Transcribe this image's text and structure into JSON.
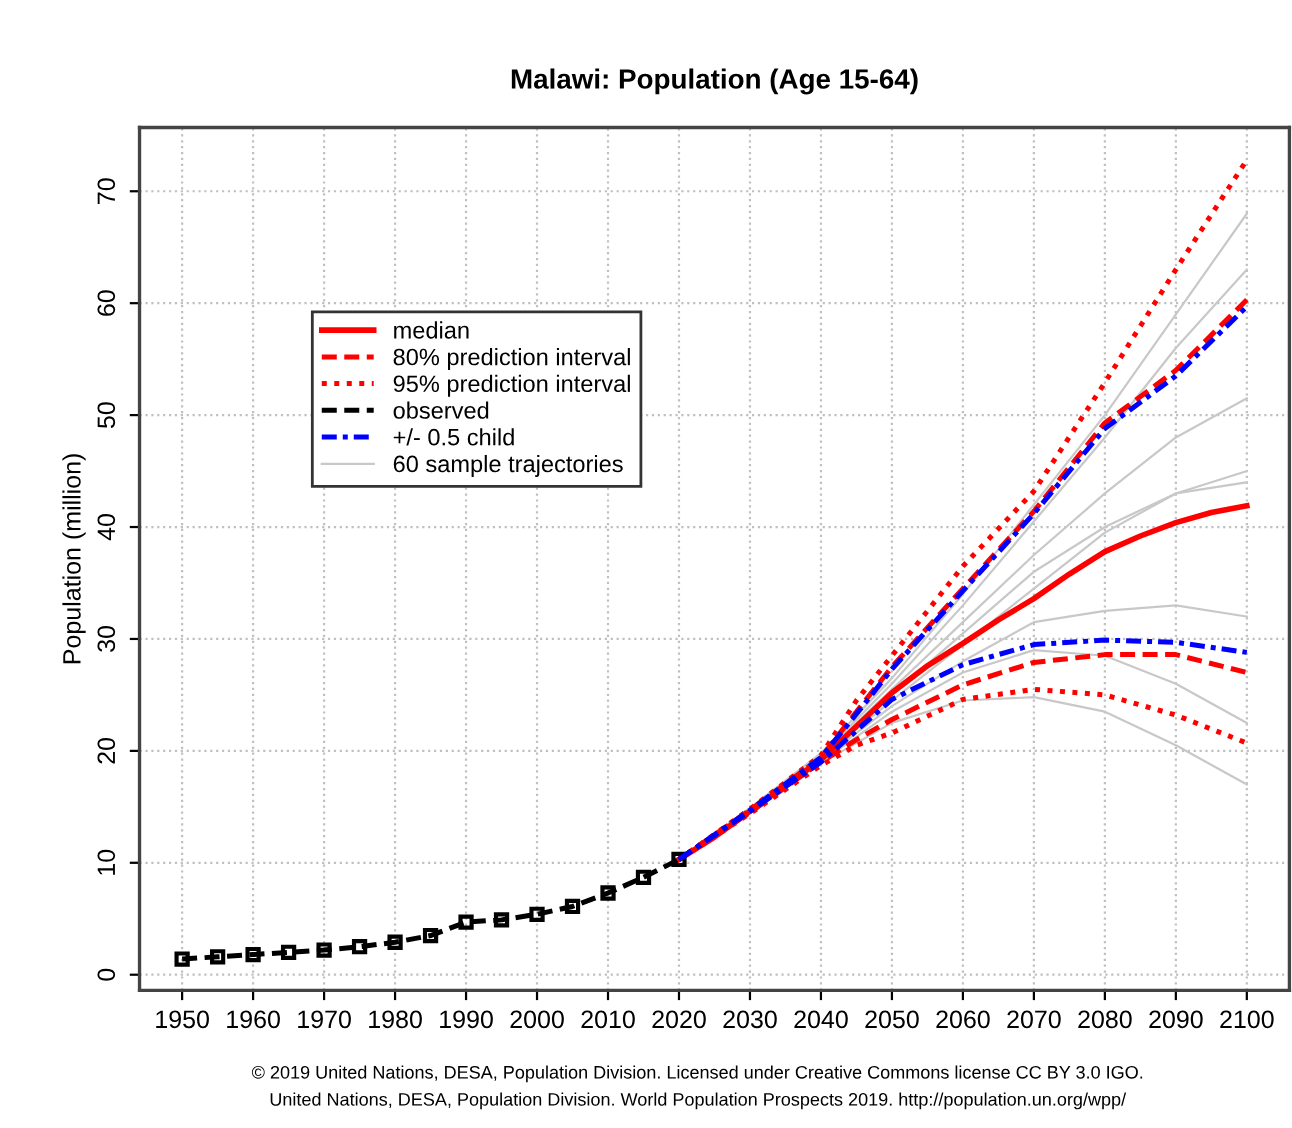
{
  "chart_data": {
    "type": "line",
    "title": "Malawi: Population (Age 15-64)",
    "ylabel": "Population (million)",
    "xlim": [
      1944,
      2106
    ],
    "ylim": [
      -1.4,
      75.7
    ],
    "xticks": [
      1950,
      1960,
      1970,
      1980,
      1990,
      2000,
      2010,
      2020,
      2030,
      2040,
      2050,
      2060,
      2070,
      2080,
      2090,
      2100
    ],
    "yticks": [
      0,
      10,
      20,
      30,
      40,
      50,
      60,
      70
    ],
    "grid": true,
    "legend": "top left",
    "series": [
      {
        "name": "60 sample trajectories",
        "color": "#c8c8c8",
        "line_style": "solid",
        "x": [
          2020,
          2030,
          2040,
          2050,
          2060,
          2070,
          2080,
          2090,
          2100
        ],
        "values": [
          10.3,
          14.7,
          19.3,
          24.5,
          29.5,
          34.5,
          39.5,
          43.0,
          45.0
        ]
      },
      {
        "color": "#c8c8c8",
        "line_style": "solid",
        "x": [
          2020,
          2030,
          2040,
          2050,
          2060,
          2070,
          2080,
          2090,
          2100
        ],
        "values": [
          10.3,
          14.8,
          19.6,
          26.0,
          33.0,
          40.5,
          48.0,
          56.0,
          63.0
        ]
      },
      {
        "color": "#c8c8c8",
        "line_style": "solid",
        "x": [
          2020,
          2030,
          2040,
          2050,
          2060,
          2070,
          2080,
          2090,
          2100
        ],
        "values": [
          10.3,
          14.6,
          18.9,
          22.5,
          24.5,
          24.8,
          23.5,
          20.5,
          17.0
        ]
      },
      {
        "color": "#c8c8c8",
        "line_style": "solid",
        "x": [
          2020,
          2030,
          2040,
          2050,
          2060,
          2070,
          2080,
          2090,
          2100
        ],
        "values": [
          10.3,
          14.7,
          19.2,
          24.0,
          28.0,
          31.5,
          32.5,
          33.0,
          32.0
        ]
      },
      {
        "color": "#c8c8c8",
        "line_style": "solid",
        "x": [
          2020,
          2030,
          2040,
          2050,
          2060,
          2070,
          2080,
          2090,
          2100
        ],
        "values": [
          10.3,
          14.8,
          19.5,
          25.5,
          31.5,
          37.5,
          43.0,
          48.0,
          51.5
        ]
      },
      {
        "color": "#c8c8c8",
        "line_style": "solid",
        "x": [
          2020,
          2030,
          2040,
          2050,
          2060,
          2070,
          2080,
          2090,
          2100
        ],
        "values": [
          10.3,
          14.6,
          19.0,
          23.5,
          27.0,
          29.0,
          28.5,
          26.0,
          22.5
        ]
      },
      {
        "color": "#c8c8c8",
        "line_style": "solid",
        "x": [
          2020,
          2030,
          2040,
          2050,
          2060,
          2070,
          2080,
          2090,
          2100
        ],
        "values": [
          10.3,
          14.7,
          19.4,
          25.0,
          30.5,
          36.0,
          40.0,
          43.0,
          44.0
        ]
      },
      {
        "color": "#c8c8c8",
        "line_style": "solid",
        "x": [
          2020,
          2030,
          2040,
          2050,
          2060,
          2070,
          2080,
          2090,
          2100
        ],
        "values": [
          10.3,
          14.9,
          19.8,
          26.5,
          34.0,
          42.0,
          50.0,
          59.0,
          68.0
        ]
      },
      {
        "name": "median",
        "color": "#ff0000",
        "line_style": "solid",
        "x": [
          2020,
          2025,
          2030,
          2035,
          2040,
          2045,
          2050,
          2055,
          2060,
          2065,
          2070,
          2075,
          2080,
          2085,
          2090,
          2095,
          2100
        ],
        "values": [
          10.3,
          12.3,
          14.6,
          16.9,
          19.2,
          22.2,
          25.2,
          27.6,
          29.6,
          31.7,
          33.6,
          35.8,
          37.8,
          39.2,
          40.4,
          41.3,
          41.9
        ]
      },
      {
        "name": "80% prediction interval",
        "color": "#ff0000",
        "line_style": "dashed",
        "x": [
          2020,
          2030,
          2040,
          2045,
          2050,
          2060,
          2070,
          2080,
          2090,
          2100
        ],
        "values": [
          10.3,
          14.7,
          19.4,
          23.5,
          27.5,
          34.5,
          41.4,
          49.3,
          54.0,
          60.3
        ]
      },
      {
        "color": "#ff0000",
        "line_style": "dashed",
        "x": [
          2020,
          2030,
          2040,
          2045,
          2050,
          2060,
          2070,
          2080,
          2090,
          2100
        ],
        "values": [
          10.3,
          14.5,
          19.0,
          21.0,
          22.8,
          25.9,
          27.9,
          28.6,
          28.6,
          27.0
        ]
      },
      {
        "name": "95% prediction interval",
        "color": "#ff0000",
        "line_style": "dotted",
        "x": [
          2020,
          2030,
          2040,
          2045,
          2050,
          2060,
          2070,
          2080,
          2090,
          2100
        ],
        "values": [
          10.3,
          14.8,
          19.6,
          24.5,
          28.5,
          36.5,
          43.2,
          52.9,
          63.0,
          72.8
        ]
      },
      {
        "color": "#ff0000",
        "line_style": "dotted",
        "x": [
          2020,
          2030,
          2040,
          2045,
          2050,
          2060,
          2070,
          2080,
          2090,
          2100
        ],
        "values": [
          10.3,
          14.4,
          18.7,
          20.5,
          21.6,
          24.6,
          25.5,
          25.0,
          23.2,
          20.7
        ]
      },
      {
        "name": "observed",
        "color": "#000000",
        "line_style": "dashed",
        "marker": "square",
        "x": [
          1950,
          1955,
          1960,
          1965,
          1970,
          1975,
          1980,
          1985,
          1990,
          1995,
          2000,
          2005,
          2010,
          2015,
          2020
        ],
        "values": [
          1.4,
          1.6,
          1.8,
          2.0,
          2.2,
          2.5,
          2.9,
          3.5,
          4.7,
          4.9,
          5.4,
          6.1,
          7.3,
          8.7,
          10.3
        ]
      },
      {
        "name": "+/- 0.5 child",
        "color": "#0000ff",
        "line_style": "dashdot",
        "x": [
          2020,
          2030,
          2040,
          2045,
          2050,
          2060,
          2070,
          2080,
          2090,
          2100
        ],
        "values": [
          10.3,
          14.7,
          19.4,
          23.3,
          27.3,
          34.3,
          41.2,
          48.8,
          53.5,
          59.7
        ]
      },
      {
        "color": "#0000ff",
        "line_style": "dashdot",
        "x": [
          2020,
          2030,
          2040,
          2045,
          2050,
          2060,
          2070,
          2080,
          2090,
          2100
        ],
        "values": [
          10.3,
          14.6,
          19.0,
          21.8,
          24.6,
          27.7,
          29.5,
          29.9,
          29.7,
          28.8
        ]
      }
    ],
    "annotations": [
      "© 2019 United Nations, DESA, Population Division. Licensed under Creative Commons license CC BY 3.0 IGO.",
      "United Nations, DESA, Population Division. World Population Prospects 2019. http://population.un.org/wpp/"
    ]
  }
}
